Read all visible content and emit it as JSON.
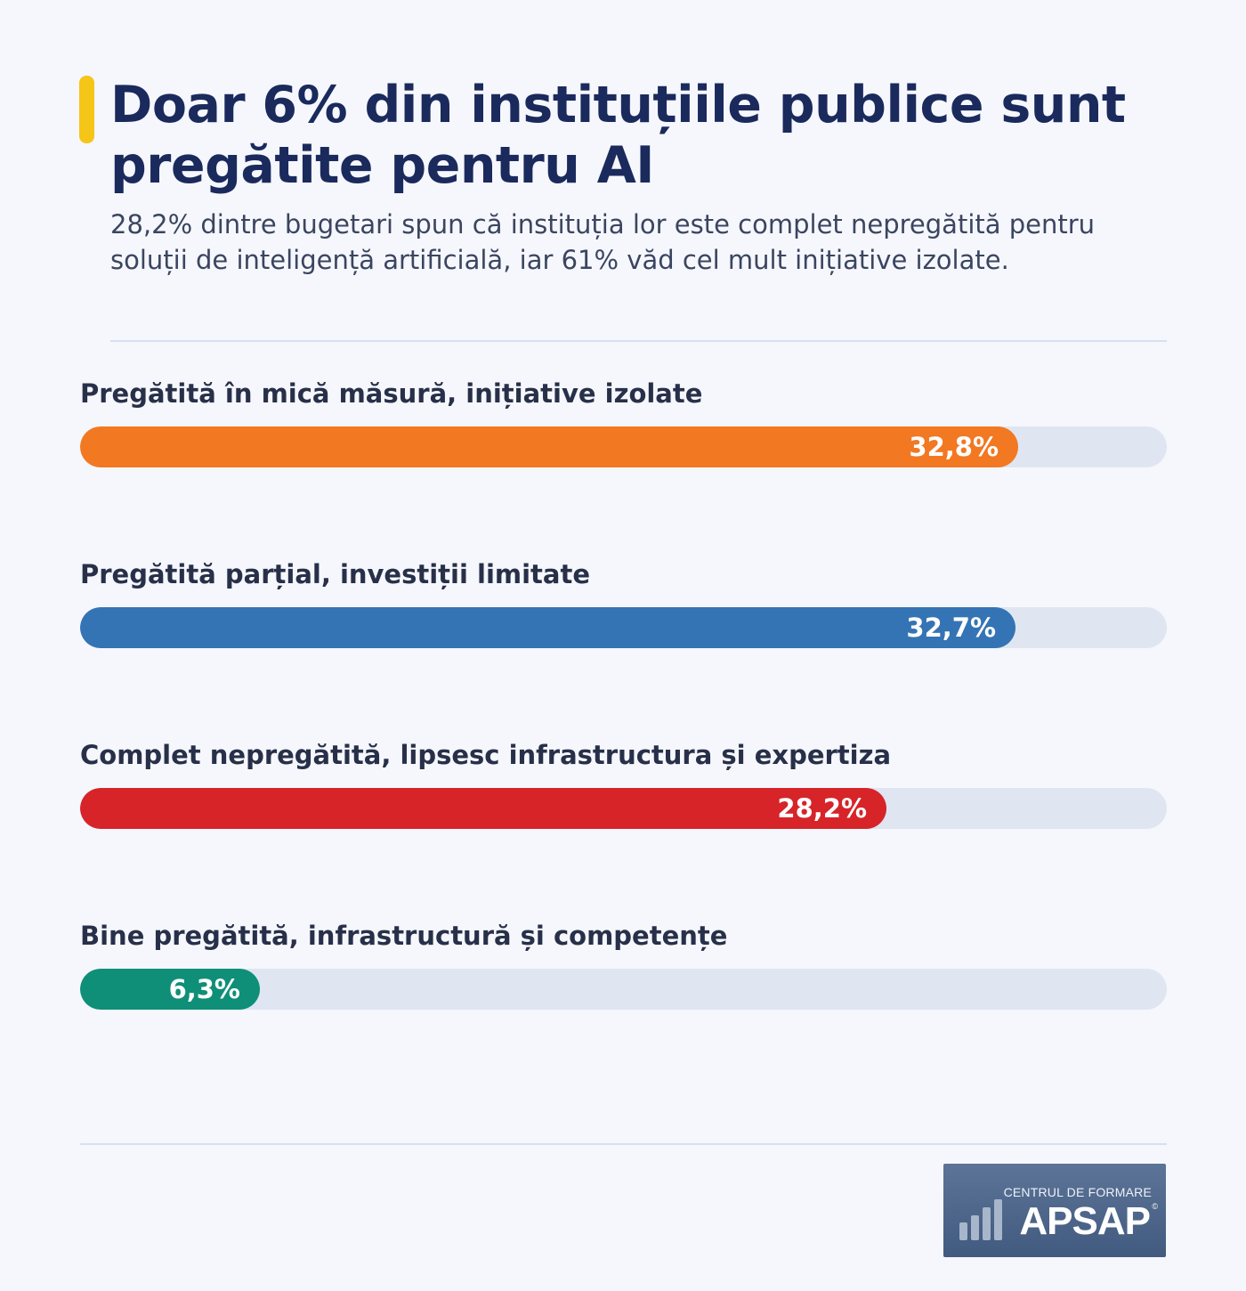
{
  "header": {
    "title": "Doar 6% din instituțiile publice sunt pregătite pentru AI",
    "subtitle": "28,2% dintre bugetari spun că instituția lor este complet nepregătită pentru soluții de inteligență artificială, iar 61% văd cel mult inițiative izolate.",
    "accent_color": "#f5c518"
  },
  "chart_data": {
    "type": "bar",
    "orientation": "horizontal",
    "title": "Doar 6% din instituțiile publice sunt pregătite pentru AI",
    "subtitle": "28,2% dintre bugetari spun că instituția lor este complet nepregătită pentru soluții de inteligență artificială, iar 61% văd cel mult inițiative izolate.",
    "xlim": [
      0,
      38
    ],
    "unit": "%",
    "grid": false,
    "categories": [
      "Pregătită în mică măsură, inițiative izolate",
      "Pregătită parțial, investiții limitate",
      "Complet nepregătită, lipsesc infrastructura și expertiza",
      "Bine pregătită, infrastructură și competențe"
    ],
    "values": [
      32.8,
      32.7,
      28.2,
      6.3
    ],
    "value_labels": [
      "32,8%",
      "32,7%",
      "28,2%",
      "6,3%"
    ],
    "colors": [
      "#f27822",
      "#3474b4",
      "#d62429",
      "#0f8f78"
    ],
    "track_color": "#dfe6f1"
  },
  "branding": {
    "line1": "CENTRUL DE FORMARE",
    "name": "APSAP",
    "mark": "©",
    "icon": "bar-chart-icon"
  }
}
